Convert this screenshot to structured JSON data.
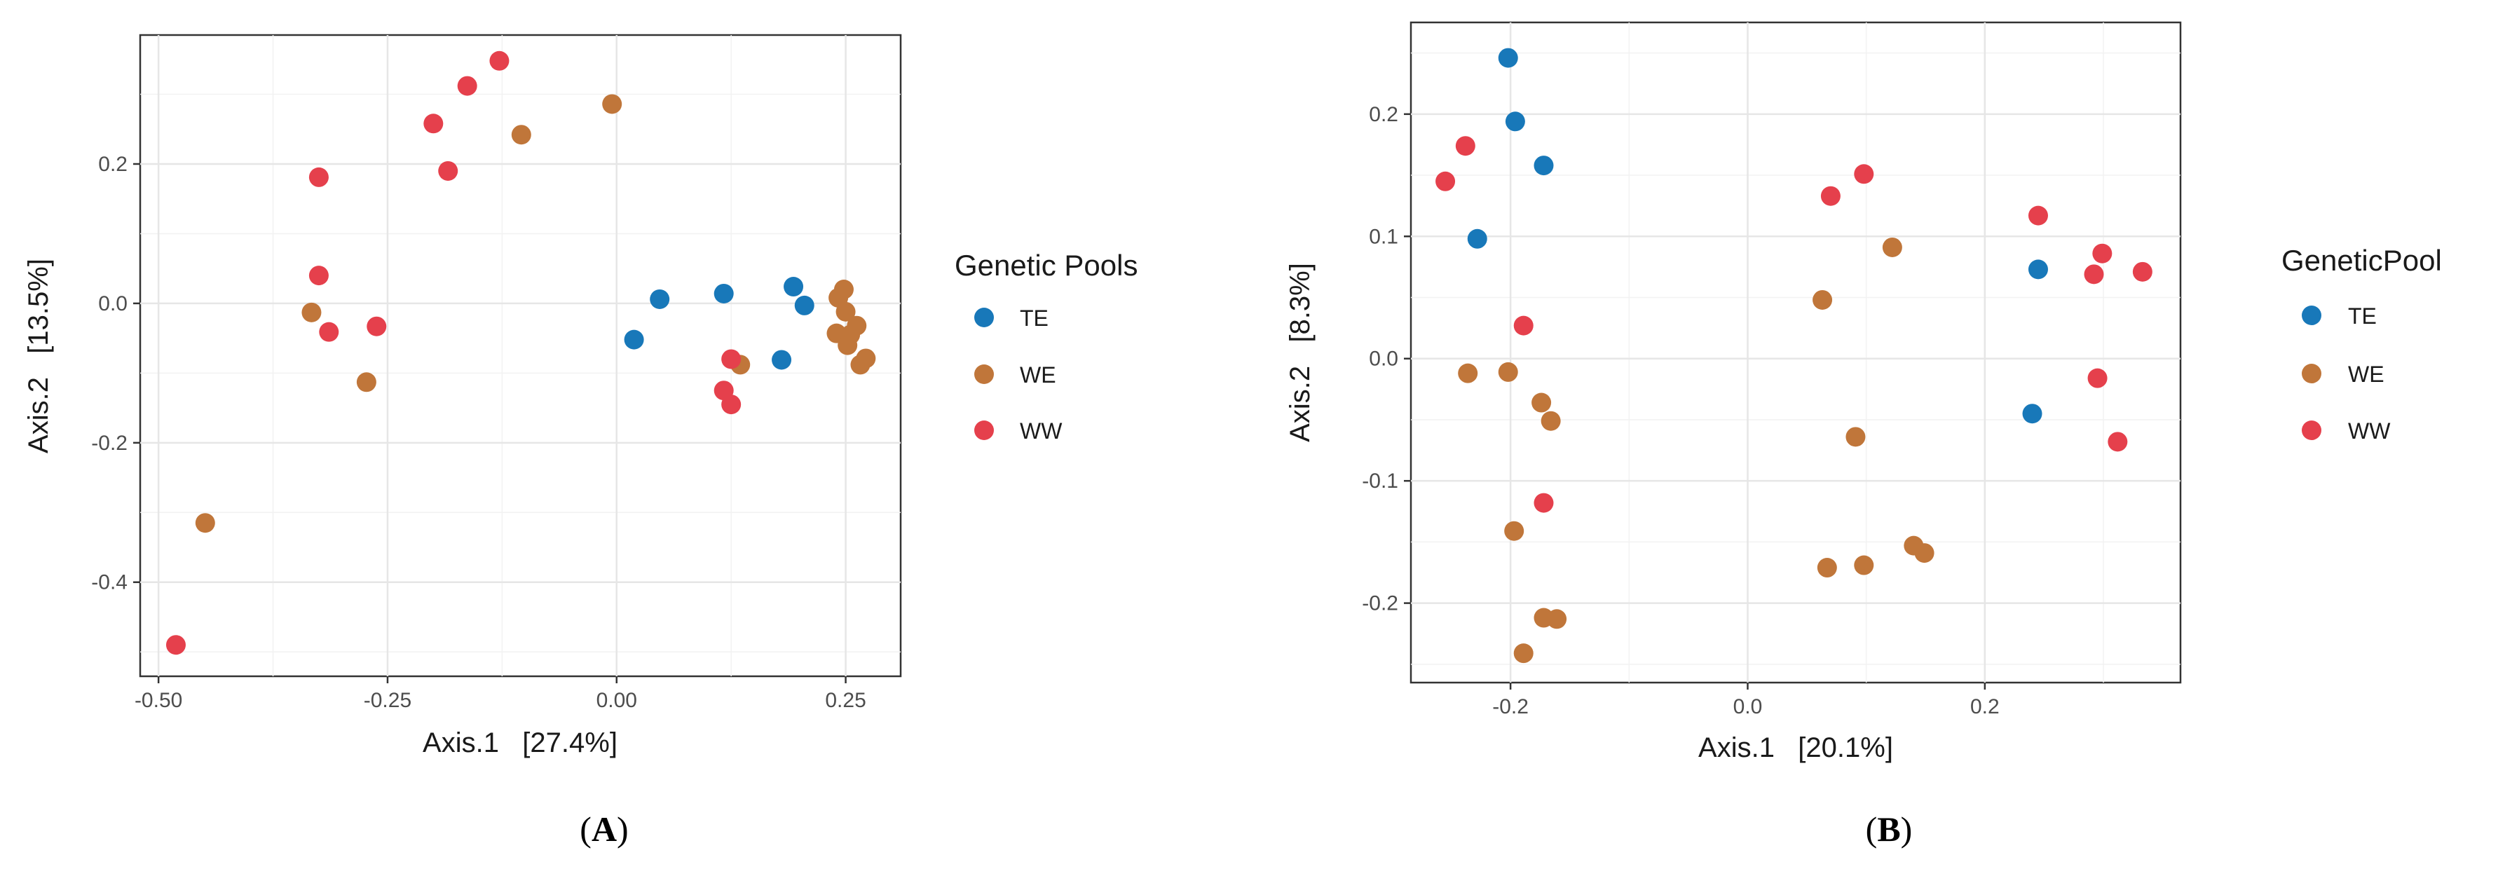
{
  "colors": {
    "TE": "#1878b9",
    "WE": "#c0763a",
    "WW": "#e5404c"
  },
  "chart_data": [
    {
      "type": "scatter",
      "panel_label": "A",
      "xlabel": "Axis.1   [27.4%]",
      "ylabel": "Axis.2   [13.5%]",
      "xlim": [
        -0.52,
        0.31
      ],
      "ylim": [
        -0.535,
        0.385
      ],
      "xticks": [
        -0.5,
        -0.25,
        0.0,
        0.25
      ],
      "xtick_labels": [
        "-0.50",
        "-0.25",
        "0.00",
        "0.25"
      ],
      "yticks": [
        -0.4,
        -0.2,
        0.0,
        0.2
      ],
      "ytick_labels": [
        "-0.4",
        "-0.2",
        "0.0",
        "0.2"
      ],
      "legend_title": "Genetic Pools",
      "legend_position": "right",
      "series": [
        {
          "name": "TE",
          "points": [
            [
              0.019,
              -0.052
            ],
            [
              0.047,
              0.006
            ],
            [
              0.117,
              0.014
            ],
            [
              0.18,
              -0.081
            ],
            [
              0.193,
              0.024
            ],
            [
              0.205,
              -0.003
            ]
          ]
        },
        {
          "name": "WE",
          "points": [
            [
              -0.333,
              -0.013
            ],
            [
              -0.273,
              -0.113
            ],
            [
              -0.449,
              -0.315
            ],
            [
              -0.104,
              0.242
            ],
            [
              -0.005,
              0.286
            ],
            [
              0.135,
              -0.088
            ],
            [
              0.24,
              -0.043
            ],
            [
              0.242,
              0.008
            ],
            [
              0.248,
              0.02
            ],
            [
              0.25,
              -0.012
            ],
            [
              0.252,
              -0.06
            ],
            [
              0.255,
              -0.045
            ],
            [
              0.262,
              -0.032
            ],
            [
              0.266,
              -0.088
            ],
            [
              0.272,
              -0.079
            ]
          ]
        },
        {
          "name": "WW",
          "points": [
            [
              -0.481,
              -0.49
            ],
            [
              -0.325,
              0.181
            ],
            [
              -0.325,
              0.04
            ],
            [
              -0.314,
              -0.041
            ],
            [
              -0.262,
              -0.033
            ],
            [
              -0.2,
              0.258
            ],
            [
              -0.184,
              0.19
            ],
            [
              -0.163,
              0.312
            ],
            [
              -0.128,
              0.348
            ],
            [
              0.117,
              -0.125
            ],
            [
              0.125,
              -0.08
            ],
            [
              0.125,
              -0.145
            ]
          ]
        }
      ]
    },
    {
      "type": "scatter",
      "panel_label": "B",
      "xlabel": "Axis.1   [20.1%]",
      "ylabel": "Axis.2   [8.3%]",
      "xlim": [
        -0.284,
        0.365
      ],
      "ylim": [
        -0.265,
        0.275
      ],
      "xticks": [
        -0.2,
        0.0,
        0.2
      ],
      "xtick_labels": [
        "-0.2",
        "0.0",
        "0.2"
      ],
      "yticks": [
        -0.2,
        -0.1,
        0.0,
        0.1,
        0.2
      ],
      "ytick_labels": [
        "-0.2",
        "-0.1",
        "0.0",
        "0.1",
        "0.2"
      ],
      "legend_title": "GeneticPool",
      "legend_position": "right",
      "series": [
        {
          "name": "TE",
          "points": [
            [
              -0.202,
              0.246
            ],
            [
              -0.196,
              0.194
            ],
            [
              -0.172,
              0.158
            ],
            [
              -0.228,
              0.098
            ],
            [
              0.245,
              0.073
            ],
            [
              0.24,
              -0.045
            ]
          ]
        },
        {
          "name": "WE",
          "points": [
            [
              -0.236,
              -0.012
            ],
            [
              -0.202,
              -0.011
            ],
            [
              -0.174,
              -0.036
            ],
            [
              -0.166,
              -0.051
            ],
            [
              -0.197,
              -0.141
            ],
            [
              -0.172,
              -0.212
            ],
            [
              -0.161,
              -0.213
            ],
            [
              -0.189,
              -0.241
            ],
            [
              0.063,
              0.048
            ],
            [
              0.122,
              0.091
            ],
            [
              0.091,
              -0.064
            ],
            [
              0.067,
              -0.171
            ],
            [
              0.098,
              -0.169
            ],
            [
              0.14,
              -0.153
            ],
            [
              0.149,
              -0.159
            ]
          ]
        },
        {
          "name": "WW",
          "points": [
            [
              -0.255,
              0.145
            ],
            [
              -0.238,
              0.174
            ],
            [
              -0.189,
              0.027
            ],
            [
              -0.172,
              -0.118
            ],
            [
              0.07,
              0.133
            ],
            [
              0.098,
              0.151
            ],
            [
              0.245,
              0.117
            ],
            [
              0.299,
              0.086
            ],
            [
              0.292,
              0.069
            ],
            [
              0.333,
              0.071
            ],
            [
              0.295,
              -0.016
            ],
            [
              0.312,
              -0.068
            ]
          ]
        }
      ]
    }
  ],
  "captions": {
    "left": "A",
    "right": "B"
  }
}
